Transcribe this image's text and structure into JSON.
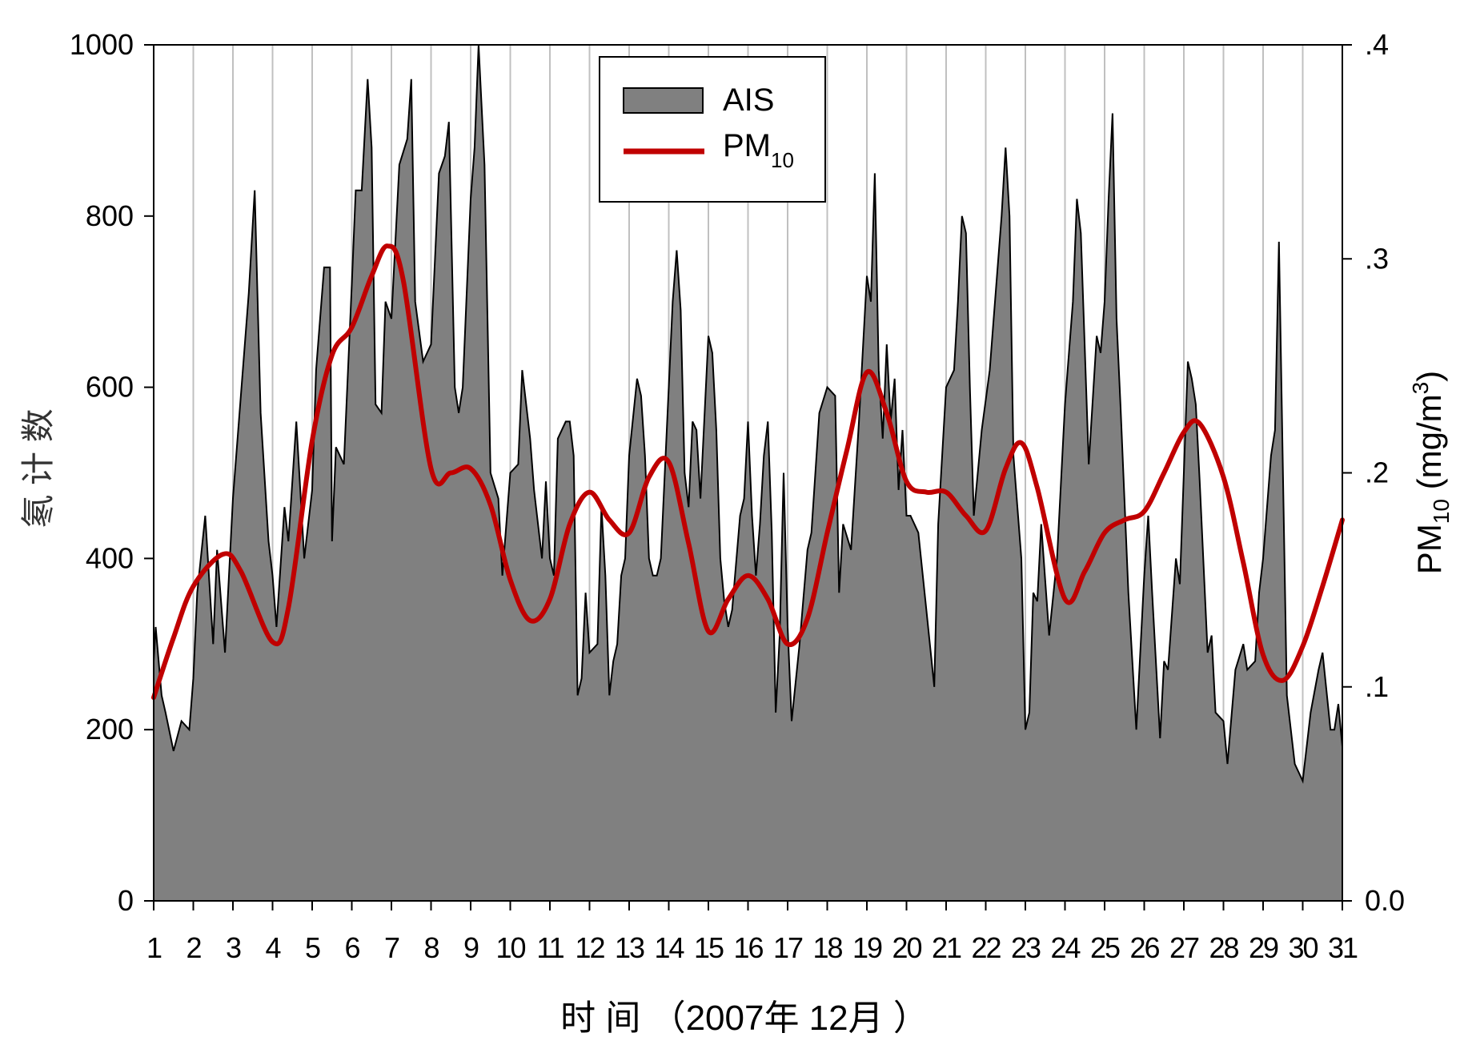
{
  "chart_data": {
    "type": "area+line",
    "xlabel": "时 间 （2007年 12月 ）",
    "ylabel": "氡 计 数",
    "y2label": {
      "main": "PM",
      "sub": "10",
      "unit_pre": " (mg/m",
      "sup": "3",
      "unit_post": ")"
    },
    "xlim": [
      1,
      31
    ],
    "ylim": [
      0,
      1000
    ],
    "y2lim": [
      0,
      0.4
    ],
    "xticks": [
      "1",
      "2",
      "3",
      "4",
      "5",
      "6",
      "7",
      "8",
      "9",
      "10",
      "11",
      "12",
      "13",
      "14",
      "15",
      "16",
      "17",
      "18",
      "19",
      "20",
      "21",
      "22",
      "23",
      "24",
      "25",
      "26",
      "27",
      "28",
      "29",
      "30",
      "31"
    ],
    "yticks": [
      "0",
      "200",
      "400",
      "600",
      "800",
      "1000"
    ],
    "y2ticks": [
      "0.0",
      ".1",
      ".2",
      ".3",
      ".4"
    ],
    "grid": "vertical",
    "legend": {
      "position": "top-center",
      "entries": [
        {
          "label": "AIS"
        },
        {
          "label": "PM",
          "sub": "10"
        }
      ]
    },
    "colors": {
      "ais_fill": "#808080",
      "ais_line": "#000000",
      "pm10": "#c00000",
      "grid": "#c0c0c0"
    },
    "series": [
      {
        "name": "AIS",
        "axis": "left",
        "type": "area",
        "points": [
          [
            1,
            280
          ],
          [
            1.05,
            320
          ],
          [
            1.2,
            240
          ],
          [
            1.3,
            220
          ],
          [
            1.5,
            175
          ],
          [
            1.7,
            210
          ],
          [
            1.9,
            200
          ],
          [
            2,
            260
          ],
          [
            2.1,
            360
          ],
          [
            2.3,
            450
          ],
          [
            2.5,
            300
          ],
          [
            2.6,
            410
          ],
          [
            2.8,
            290
          ],
          [
            3,
            470
          ],
          [
            3.2,
            590
          ],
          [
            3.4,
            710
          ],
          [
            3.55,
            830
          ],
          [
            3.7,
            570
          ],
          [
            3.9,
            420
          ],
          [
            4,
            380
          ],
          [
            4.1,
            320
          ],
          [
            4.3,
            460
          ],
          [
            4.4,
            420
          ],
          [
            4.6,
            560
          ],
          [
            4.8,
            400
          ],
          [
            5,
            480
          ],
          [
            5.1,
            620
          ],
          [
            5.3,
            740
          ],
          [
            5.45,
            740
          ],
          [
            5.5,
            420
          ],
          [
            5.6,
            530
          ],
          [
            5.8,
            510
          ],
          [
            6,
            720
          ],
          [
            6.1,
            830
          ],
          [
            6.25,
            830
          ],
          [
            6.4,
            960
          ],
          [
            6.5,
            880
          ],
          [
            6.6,
            580
          ],
          [
            6.75,
            570
          ],
          [
            6.85,
            700
          ],
          [
            7,
            680
          ],
          [
            7.2,
            860
          ],
          [
            7.4,
            890
          ],
          [
            7.5,
            960
          ],
          [
            7.6,
            700
          ],
          [
            7.8,
            630
          ],
          [
            8,
            650
          ],
          [
            8.2,
            850
          ],
          [
            8.35,
            870
          ],
          [
            8.45,
            910
          ],
          [
            8.6,
            600
          ],
          [
            8.7,
            570
          ],
          [
            8.8,
            600
          ],
          [
            9,
            820
          ],
          [
            9.1,
            880
          ],
          [
            9.2,
            1000
          ],
          [
            9.35,
            860
          ],
          [
            9.5,
            500
          ],
          [
            9.7,
            470
          ],
          [
            9.8,
            380
          ],
          [
            10,
            500
          ],
          [
            10.2,
            510
          ],
          [
            10.3,
            620
          ],
          [
            10.5,
            540
          ],
          [
            10.6,
            480
          ],
          [
            10.8,
            400
          ],
          [
            10.9,
            490
          ],
          [
            11,
            400
          ],
          [
            11.1,
            380
          ],
          [
            11.2,
            540
          ],
          [
            11.4,
            560
          ],
          [
            11.5,
            560
          ],
          [
            11.6,
            520
          ],
          [
            11.7,
            240
          ],
          [
            11.8,
            260
          ],
          [
            11.9,
            360
          ],
          [
            12,
            290
          ],
          [
            12.2,
            300
          ],
          [
            12.3,
            460
          ],
          [
            12.4,
            380
          ],
          [
            12.5,
            240
          ],
          [
            12.6,
            280
          ],
          [
            12.7,
            300
          ],
          [
            12.8,
            380
          ],
          [
            12.9,
            400
          ],
          [
            13,
            520
          ],
          [
            13.2,
            610
          ],
          [
            13.3,
            590
          ],
          [
            13.4,
            520
          ],
          [
            13.5,
            400
          ],
          [
            13.6,
            380
          ],
          [
            13.7,
            380
          ],
          [
            13.8,
            400
          ],
          [
            14,
            600
          ],
          [
            14.1,
            700
          ],
          [
            14.2,
            760
          ],
          [
            14.3,
            690
          ],
          [
            14.4,
            500
          ],
          [
            14.5,
            460
          ],
          [
            14.6,
            560
          ],
          [
            14.7,
            550
          ],
          [
            14.8,
            470
          ],
          [
            15,
            660
          ],
          [
            15.1,
            640
          ],
          [
            15.2,
            550
          ],
          [
            15.3,
            400
          ],
          [
            15.4,
            350
          ],
          [
            15.5,
            320
          ],
          [
            15.6,
            340
          ],
          [
            15.8,
            450
          ],
          [
            15.9,
            470
          ],
          [
            16,
            560
          ],
          [
            16.1,
            450
          ],
          [
            16.2,
            380
          ],
          [
            16.3,
            440
          ],
          [
            16.4,
            520
          ],
          [
            16.5,
            560
          ],
          [
            16.6,
            430
          ],
          [
            16.7,
            220
          ],
          [
            16.8,
            310
          ],
          [
            16.9,
            500
          ],
          [
            17,
            320
          ],
          [
            17.1,
            210
          ],
          [
            17.3,
            300
          ],
          [
            17.5,
            410
          ],
          [
            17.6,
            430
          ],
          [
            17.8,
            570
          ],
          [
            18,
            600
          ],
          [
            18.2,
            590
          ],
          [
            18.3,
            360
          ],
          [
            18.4,
            440
          ],
          [
            18.6,
            410
          ],
          [
            18.8,
            560
          ],
          [
            19,
            730
          ],
          [
            19.1,
            700
          ],
          [
            19.2,
            850
          ],
          [
            19.3,
            620
          ],
          [
            19.4,
            540
          ],
          [
            19.5,
            650
          ],
          [
            19.6,
            560
          ],
          [
            19.7,
            610
          ],
          [
            19.8,
            480
          ],
          [
            19.9,
            550
          ],
          [
            20,
            450
          ],
          [
            20.1,
            450
          ],
          [
            20.3,
            430
          ],
          [
            20.5,
            340
          ],
          [
            20.7,
            250
          ],
          [
            20.8,
            440
          ],
          [
            21,
            600
          ],
          [
            21.2,
            620
          ],
          [
            21.3,
            700
          ],
          [
            21.4,
            800
          ],
          [
            21.5,
            780
          ],
          [
            21.6,
            600
          ],
          [
            21.7,
            450
          ],
          [
            21.9,
            550
          ],
          [
            22.1,
            620
          ],
          [
            22.2,
            680
          ],
          [
            22.4,
            800
          ],
          [
            22.5,
            880
          ],
          [
            22.6,
            800
          ],
          [
            22.7,
            520
          ],
          [
            22.9,
            400
          ],
          [
            23,
            200
          ],
          [
            23.1,
            220
          ],
          [
            23.2,
            360
          ],
          [
            23.3,
            350
          ],
          [
            23.4,
            440
          ],
          [
            23.6,
            310
          ],
          [
            23.8,
            400
          ],
          [
            24,
            580
          ],
          [
            24.2,
            700
          ],
          [
            24.3,
            820
          ],
          [
            24.4,
            780
          ],
          [
            24.6,
            510
          ],
          [
            24.8,
            660
          ],
          [
            24.9,
            640
          ],
          [
            25,
            700
          ],
          [
            25.1,
            820
          ],
          [
            25.2,
            920
          ],
          [
            25.3,
            680
          ],
          [
            25.4,
            580
          ],
          [
            25.6,
            360
          ],
          [
            25.8,
            200
          ],
          [
            26,
            380
          ],
          [
            26.1,
            450
          ],
          [
            26.2,
            360
          ],
          [
            26.4,
            190
          ],
          [
            26.5,
            280
          ],
          [
            26.6,
            270
          ],
          [
            26.8,
            400
          ],
          [
            26.9,
            370
          ],
          [
            27.1,
            630
          ],
          [
            27.2,
            610
          ],
          [
            27.3,
            580
          ],
          [
            27.4,
            490
          ],
          [
            27.6,
            290
          ],
          [
            27.7,
            310
          ],
          [
            27.8,
            220
          ],
          [
            28,
            210
          ],
          [
            28.1,
            160
          ],
          [
            28.3,
            270
          ],
          [
            28.5,
            300
          ],
          [
            28.6,
            270
          ],
          [
            28.8,
            280
          ],
          [
            28.9,
            360
          ],
          [
            29,
            400
          ],
          [
            29.2,
            520
          ],
          [
            29.3,
            550
          ],
          [
            29.4,
            770
          ],
          [
            29.5,
            500
          ],
          [
            29.6,
            240
          ],
          [
            29.8,
            160
          ],
          [
            30,
            140
          ],
          [
            30.2,
            220
          ],
          [
            30.4,
            270
          ],
          [
            30.5,
            290
          ],
          [
            30.7,
            200
          ],
          [
            30.8,
            200
          ],
          [
            30.9,
            230
          ],
          [
            31,
            180
          ],
          [
            31.05,
            220
          ]
        ]
      },
      {
        "name": "PM10",
        "axis": "right",
        "type": "line",
        "points": [
          [
            1,
            0.095
          ],
          [
            1.5,
            0.123
          ],
          [
            2,
            0.147
          ],
          [
            2.75,
            0.162
          ],
          [
            3.2,
            0.154
          ],
          [
            4,
            0.121
          ],
          [
            4.4,
            0.137
          ],
          [
            5,
            0.215
          ],
          [
            5.5,
            0.255
          ],
          [
            6,
            0.268
          ],
          [
            6.5,
            0.292
          ],
          [
            6.9,
            0.306
          ],
          [
            7.3,
            0.29
          ],
          [
            8,
            0.202
          ],
          [
            8.5,
            0.2
          ],
          [
            9,
            0.202
          ],
          [
            9.5,
            0.185
          ],
          [
            10,
            0.15
          ],
          [
            10.5,
            0.131
          ],
          [
            11,
            0.141
          ],
          [
            11.5,
            0.176
          ],
          [
            12,
            0.191
          ],
          [
            12.5,
            0.178
          ],
          [
            13,
            0.172
          ],
          [
            13.5,
            0.198
          ],
          [
            14,
            0.205
          ],
          [
            14.5,
            0.167
          ],
          [
            15,
            0.126
          ],
          [
            15.5,
            0.141
          ],
          [
            16,
            0.152
          ],
          [
            16.5,
            0.141
          ],
          [
            17,
            0.12
          ],
          [
            17.5,
            0.132
          ],
          [
            18,
            0.172
          ],
          [
            18.5,
            0.211
          ],
          [
            19,
            0.247
          ],
          [
            19.5,
            0.228
          ],
          [
            20,
            0.196
          ],
          [
            20.5,
            0.191
          ],
          [
            21,
            0.191
          ],
          [
            21.5,
            0.18
          ],
          [
            22,
            0.173
          ],
          [
            22.5,
            0.202
          ],
          [
            22.9,
            0.214
          ],
          [
            23.3,
            0.193
          ],
          [
            24,
            0.141
          ],
          [
            24.5,
            0.154
          ],
          [
            25,
            0.172
          ],
          [
            25.5,
            0.178
          ],
          [
            26,
            0.182
          ],
          [
            26.5,
            0.2
          ],
          [
            27,
            0.219
          ],
          [
            27.4,
            0.223
          ],
          [
            28,
            0.198
          ],
          [
            28.5,
            0.158
          ],
          [
            29,
            0.115
          ],
          [
            29.5,
            0.103
          ],
          [
            30,
            0.119
          ],
          [
            30.5,
            0.147
          ],
          [
            31,
            0.178
          ]
        ]
      }
    ]
  }
}
